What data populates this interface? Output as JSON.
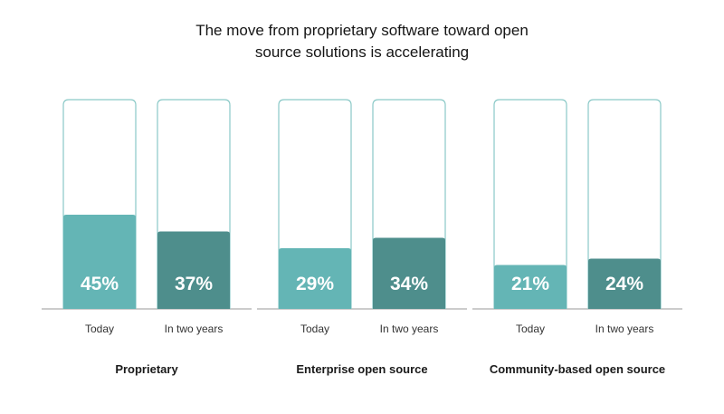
{
  "chart_data": {
    "type": "bar",
    "title_lines": [
      "The move from proprietary software toward open",
      "source solutions is accelerating"
    ],
    "ylim": [
      0,
      100
    ],
    "unit": "%",
    "groups": [
      {
        "name": "Proprietary",
        "bars": [
          {
            "label": "Today",
            "value": 45,
            "value_label": "45%"
          },
          {
            "label": "In two years",
            "value": 37,
            "value_label": "37%"
          }
        ]
      },
      {
        "name": "Enterprise open source",
        "bars": [
          {
            "label": "Today",
            "value": 29,
            "value_label": "29%"
          },
          {
            "label": "In two years",
            "value": 34,
            "value_label": "34%"
          }
        ]
      },
      {
        "name": "Community-based open source",
        "bars": [
          {
            "label": "Today",
            "value": 21,
            "value_label": "21%"
          },
          {
            "label": "In two years",
            "value": 24,
            "value_label": "24%"
          }
        ]
      }
    ],
    "colors": {
      "today": "#64b5b5",
      "in_two_years": "#4e8e8c",
      "outline": "#8ac9c7",
      "baseline": "#999999"
    }
  }
}
